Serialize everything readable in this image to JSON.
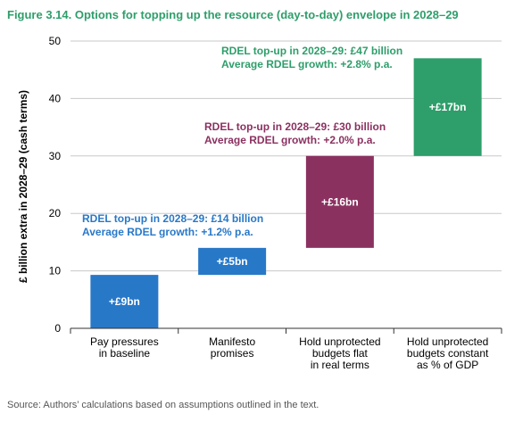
{
  "title": "Figure 3.14. Options for topping up the resource (day-to-day) envelope in 2028–29",
  "source": "Source: Authors’ calculations based on assumptions outlined in the text.",
  "colors": {
    "bar1": "#2878c8",
    "bar2": "#2878c8",
    "bar3": "#8b3160",
    "bar4": "#2e9e6a",
    "title": "#2e9e6a"
  },
  "chart_data": {
    "type": "bar",
    "subtype": "waterfall",
    "ylabel": "£ billion extra in 2028–29 (cash terms)",
    "ylim": [
      0,
      50
    ],
    "yticks": [
      0,
      10,
      20,
      30,
      40,
      50
    ],
    "grid": true,
    "categories": [
      [
        "Pay pressures",
        "in baseline"
      ],
      [
        "Manifesto",
        "promises"
      ],
      [
        "Hold unprotected",
        "budgets flat",
        "in real terms"
      ],
      [
        "Hold unprotected",
        "budgets constant",
        "as % of GDP"
      ]
    ],
    "bars": [
      {
        "start": 0,
        "end": 9.3,
        "label": "+£9bn",
        "color": "#2878c8"
      },
      {
        "start": 9.3,
        "end": 14,
        "label": "+£5bn",
        "color": "#2878c8"
      },
      {
        "start": 14,
        "end": 30,
        "label": "+£16bn",
        "color": "#8b3160"
      },
      {
        "start": 30,
        "end": 47,
        "label": "+£17bn",
        "color": "#2e9e6a"
      }
    ],
    "annotations": [
      {
        "lines": [
          "RDEL top-up in 2028–29: £14 billion",
          "Average RDEL growth: +1.2% p.a."
        ],
        "color": "#2878c8"
      },
      {
        "lines": [
          "RDEL top-up in 2028–29: £30 billion",
          "Average RDEL growth: +2.0% p.a."
        ],
        "color": "#8b3160"
      },
      {
        "lines": [
          "RDEL top-up in 2028–29: £47 billion",
          "Average RDEL growth: +2.8% p.a."
        ],
        "color": "#2e9e6a"
      }
    ]
  }
}
